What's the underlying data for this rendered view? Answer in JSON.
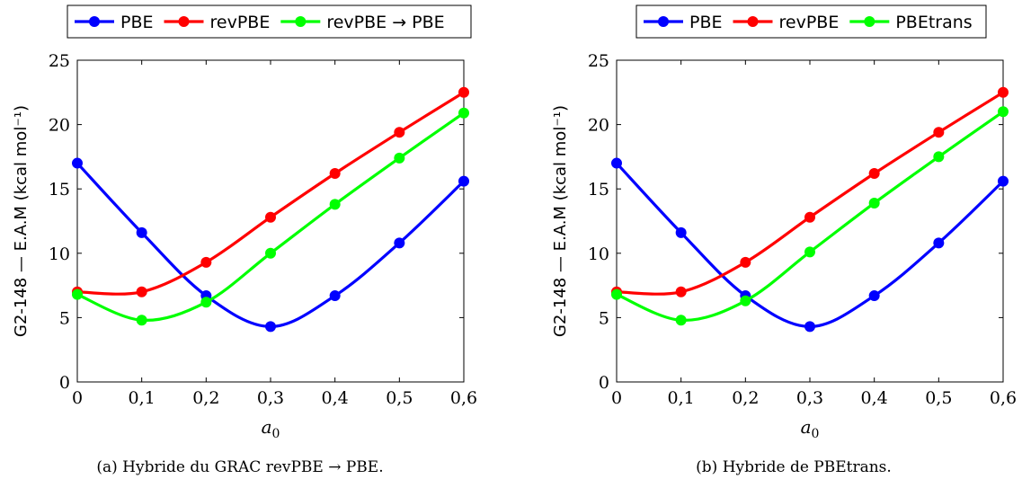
{
  "chart_data": [
    {
      "type": "line",
      "caption": "(a) Hybride du GRAC revPBE → PBE.",
      "xlabel": "a0",
      "ylabel": "G2-148 — E.A.M (kcal mol⁻¹)",
      "xlim": [
        0,
        0.6
      ],
      "ylim": [
        0,
        25
      ],
      "xticks": [
        0,
        0.1,
        0.2,
        0.3,
        0.4,
        0.5,
        0.6
      ],
      "xtick_labels": [
        "0",
        "0,1",
        "0,2",
        "0,3",
        "0,4",
        "0,5",
        "0,6"
      ],
      "yticks": [
        0,
        5,
        10,
        15,
        20,
        25
      ],
      "ytick_labels": [
        "0",
        "5",
        "10",
        "15",
        "20",
        "25"
      ],
      "grid": false,
      "legend_position": "top",
      "x": [
        0,
        0.1,
        0.2,
        0.3,
        0.4,
        0.5,
        0.6
      ],
      "series": [
        {
          "name": "PBE",
          "color": "#0000ff",
          "values": [
            17.0,
            11.6,
            6.7,
            4.3,
            6.7,
            10.8,
            15.6
          ]
        },
        {
          "name": "revPBE",
          "color": "#ff0000",
          "values": [
            7.0,
            7.0,
            9.3,
            12.8,
            16.2,
            19.4,
            22.5
          ]
        },
        {
          "name": "revPBE → PBE",
          "color": "#00ff00",
          "values": [
            6.8,
            4.8,
            6.2,
            10.0,
            13.8,
            17.4,
            20.9
          ]
        }
      ]
    },
    {
      "type": "line",
      "caption": "(b) Hybride de PBEtrans.",
      "xlabel": "a0",
      "ylabel": "G2-148 — E.A.M (kcal mol⁻¹)",
      "xlim": [
        0,
        0.6
      ],
      "ylim": [
        0,
        25
      ],
      "xticks": [
        0,
        0.1,
        0.2,
        0.3,
        0.4,
        0.5,
        0.6
      ],
      "xtick_labels": [
        "0",
        "0,1",
        "0,2",
        "0,3",
        "0,4",
        "0,5",
        "0,6"
      ],
      "yticks": [
        0,
        5,
        10,
        15,
        20,
        25
      ],
      "ytick_labels": [
        "0",
        "5",
        "10",
        "15",
        "20",
        "25"
      ],
      "grid": false,
      "legend_position": "top",
      "x": [
        0,
        0.1,
        0.2,
        0.3,
        0.4,
        0.5,
        0.6
      ],
      "series": [
        {
          "name": "PBE",
          "color": "#0000ff",
          "values": [
            17.0,
            11.6,
            6.7,
            4.3,
            6.7,
            10.8,
            15.6
          ]
        },
        {
          "name": "revPBE",
          "color": "#ff0000",
          "values": [
            7.0,
            7.0,
            9.3,
            12.8,
            16.2,
            19.4,
            22.5
          ]
        },
        {
          "name": "PBEtrans",
          "color": "#00ff00",
          "values": [
            6.8,
            4.8,
            6.3,
            10.1,
            13.9,
            17.5,
            21.0
          ]
        }
      ]
    }
  ]
}
